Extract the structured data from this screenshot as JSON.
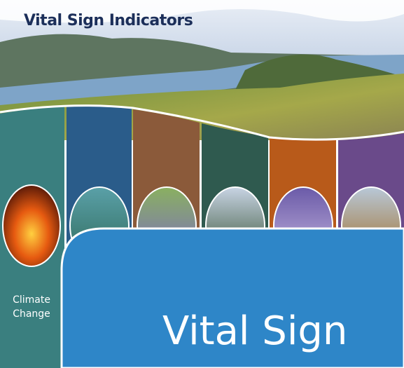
{
  "header": {
    "title": "Vital Sign Indicators"
  },
  "tiles": [
    {
      "label": "Climate Change"
    }
  ],
  "panel": {
    "title": "Vital Sign"
  }
}
